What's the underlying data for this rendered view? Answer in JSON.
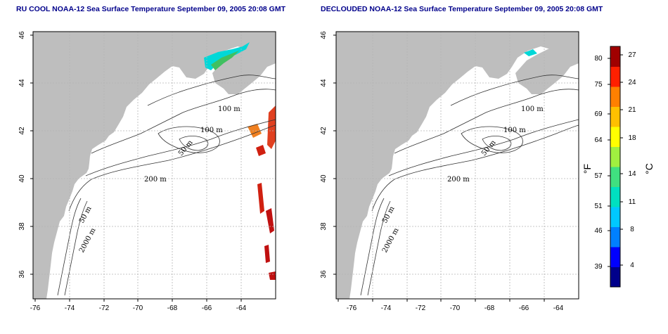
{
  "panels": [
    {
      "title": "RU COOL NOAA-12 Sea Surface Temperature September 09, 2005 20:08 GMT",
      "contour_labels": [
        "100 m",
        "100 m",
        "50 m",
        "200 m",
        "50 m",
        "2000 m"
      ]
    },
    {
      "title": "DECLOUDED NOAA-12 Sea Surface Temperature September 09, 2005 20:08 GMT",
      "contour_labels": [
        "100 m",
        "100 m",
        "50 m",
        "200 m",
        "50 m",
        "2000 m"
      ]
    }
  ],
  "map": {
    "lon_ticks": [
      "-76",
      "-74",
      "-72",
      "-70",
      "-68",
      "-66",
      "-64"
    ],
    "lat_ticks": [
      "36",
      "38",
      "40",
      "42",
      "44",
      "46"
    ],
    "land_color": "#bebebe",
    "ocean_color": "#ffffff"
  },
  "colorbar": {
    "f_label": "°F",
    "c_label": "°C",
    "f_ticks": [
      "39",
      "46",
      "51",
      "57",
      "64",
      "69",
      "75",
      "80"
    ],
    "c_ticks": [
      "4",
      "8",
      "11",
      "14",
      "18",
      "21",
      "24",
      "27"
    ],
    "colors": [
      "#00008b",
      "#0000ff",
      "#0080ff",
      "#00c8ff",
      "#00e0c0",
      "#40e080",
      "#a0f040",
      "#ffff00",
      "#ffc000",
      "#ff8000",
      "#ff2000",
      "#a00000"
    ]
  }
}
